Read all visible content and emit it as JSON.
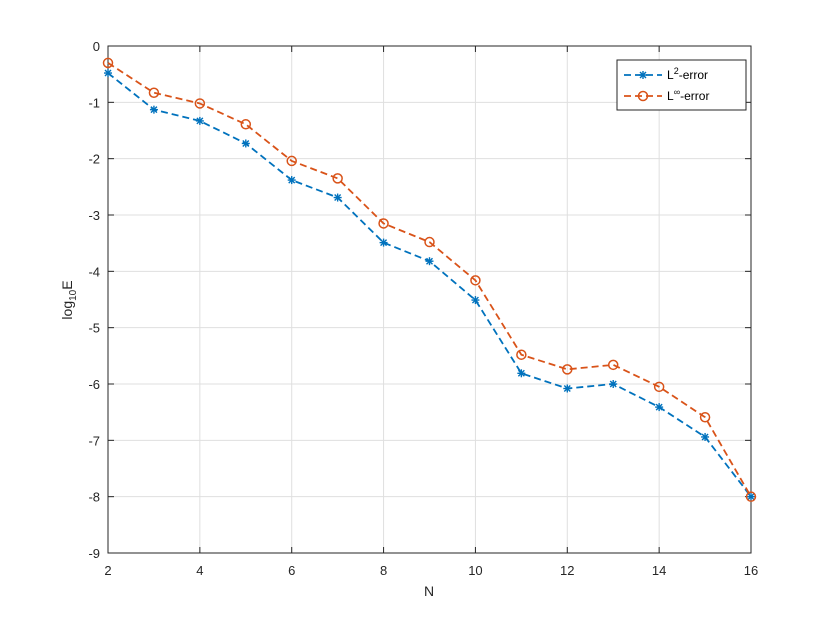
{
  "chart_data": {
    "type": "line",
    "x": [
      2,
      3,
      4,
      5,
      6,
      7,
      8,
      9,
      10,
      11,
      12,
      13,
      14,
      15,
      16
    ],
    "series": [
      {
        "name": "L²-error",
        "name_base": "L",
        "name_sup": "2",
        "name_suffix": "-error",
        "color": "#0072BD",
        "marker": "asterisk",
        "linestyle": "dashed",
        "values": [
          -0.48,
          -1.13,
          -1.33,
          -1.73,
          -2.38,
          -2.69,
          -3.49,
          -3.82,
          -4.51,
          -5.81,
          -6.08,
          -6.0,
          -6.41,
          -6.94,
          -8.0
        ]
      },
      {
        "name": "L∞-error",
        "name_base": "L",
        "name_sup": "∞",
        "name_suffix": "-error",
        "color": "#D95319",
        "marker": "circle",
        "linestyle": "dashed",
        "values": [
          -0.3,
          -0.83,
          -1.02,
          -1.39,
          -2.04,
          -2.35,
          -3.15,
          -3.48,
          -4.16,
          -5.48,
          -5.74,
          -5.66,
          -6.05,
          -6.59,
          -8.0
        ]
      }
    ],
    "xlabel": "N",
    "ylabel_base": "log",
    "ylabel_sub": "10",
    "ylabel_suffix": "E",
    "xlim": [
      2,
      16
    ],
    "ylim": [
      -9,
      0
    ],
    "xticks": [
      2,
      4,
      6,
      8,
      10,
      12,
      14,
      16
    ],
    "yticks": [
      0,
      -1,
      -2,
      -3,
      -4,
      -5,
      -6,
      -7,
      -8,
      -9
    ],
    "grid": true,
    "legend_position": "top-right"
  }
}
